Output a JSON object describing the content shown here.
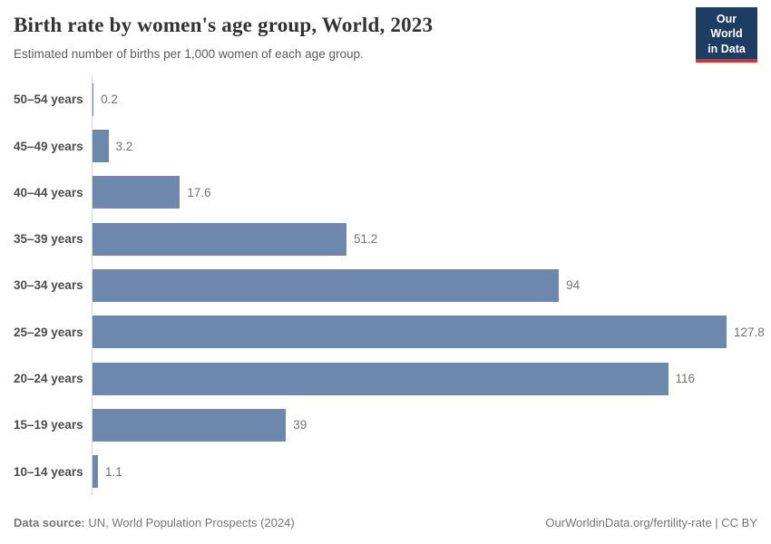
{
  "header": {
    "title": "Birth rate by women's age group, World, 2023",
    "subtitle": "Estimated number of births per 1,000 women of each age group.",
    "logo": {
      "line1": "Our World",
      "line2": "in Data"
    }
  },
  "chart_data": {
    "type": "bar",
    "orientation": "horizontal",
    "title": "Birth rate by women's age group, World, 2023",
    "subtitle": "Estimated number of births per 1,000 women of each age group.",
    "categories": [
      "50–54 years",
      "45–49 years",
      "40–44 years",
      "35–39 years",
      "30–34 years",
      "25–29 years",
      "20–24 years",
      "15–19 years",
      "10–14 years"
    ],
    "values": [
      0.2,
      3.2,
      17.6,
      51.2,
      94,
      127.8,
      116,
      39,
      1.1
    ],
    "value_labels": [
      "0.2",
      "3.2",
      "17.6",
      "51.2",
      "94",
      "127.8",
      "116",
      "39",
      "1.1"
    ],
    "xlabel": "",
    "ylabel": "",
    "xlim": [
      0,
      136
    ],
    "grid": false,
    "legend": "none"
  },
  "colors": {
    "bar": "#6e87ac",
    "logo_bg": "#1d3d63",
    "logo_stripe": "#d7332f",
    "axis_line": "#d4d7dc"
  },
  "footer": {
    "source_label": "Data source:",
    "source_value": " UN, World Population Prospects (2024)",
    "license": "OurWorldinData.org/fertility-rate | CC BY"
  }
}
